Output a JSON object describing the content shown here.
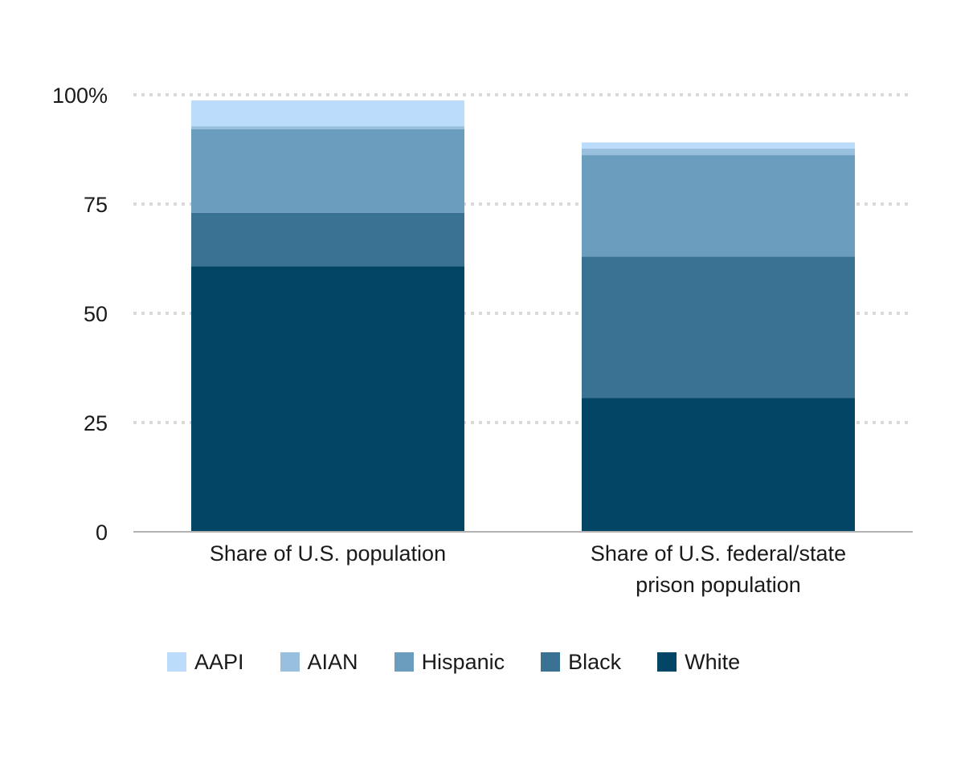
{
  "chart_data": {
    "type": "bar",
    "stacked": true,
    "categories": [
      [
        "Share of U.S. population"
      ],
      [
        "Share of U.S. federal/state",
        "prison population"
      ]
    ],
    "series": [
      {
        "name": "White",
        "color": "#024565",
        "values": [
          60.8,
          30.6
        ]
      },
      {
        "name": "Black",
        "color": "#3a7293",
        "values": [
          12.2,
          32.4
        ]
      },
      {
        "name": "Hispanic",
        "color": "#6b9dbf",
        "values": [
          19.1,
          23.2
        ]
      },
      {
        "name": "AIAN",
        "color": "#98bfde",
        "values": [
          0.7,
          1.5
        ]
      },
      {
        "name": "AAPI",
        "color": "#bcdcfb",
        "values": [
          5.9,
          1.4
        ]
      }
    ],
    "legend_order": [
      "AAPI",
      "AIAN",
      "Hispanic",
      "Black",
      "White"
    ],
    "yticks": [
      "0",
      "25",
      "50",
      "75",
      "100%"
    ],
    "ytick_values": [
      0,
      25,
      50,
      75,
      100
    ],
    "ylim": [
      0,
      100
    ],
    "grid": true,
    "legend_position": "bottom",
    "title": "",
    "xlabel": "",
    "ylabel": ""
  }
}
